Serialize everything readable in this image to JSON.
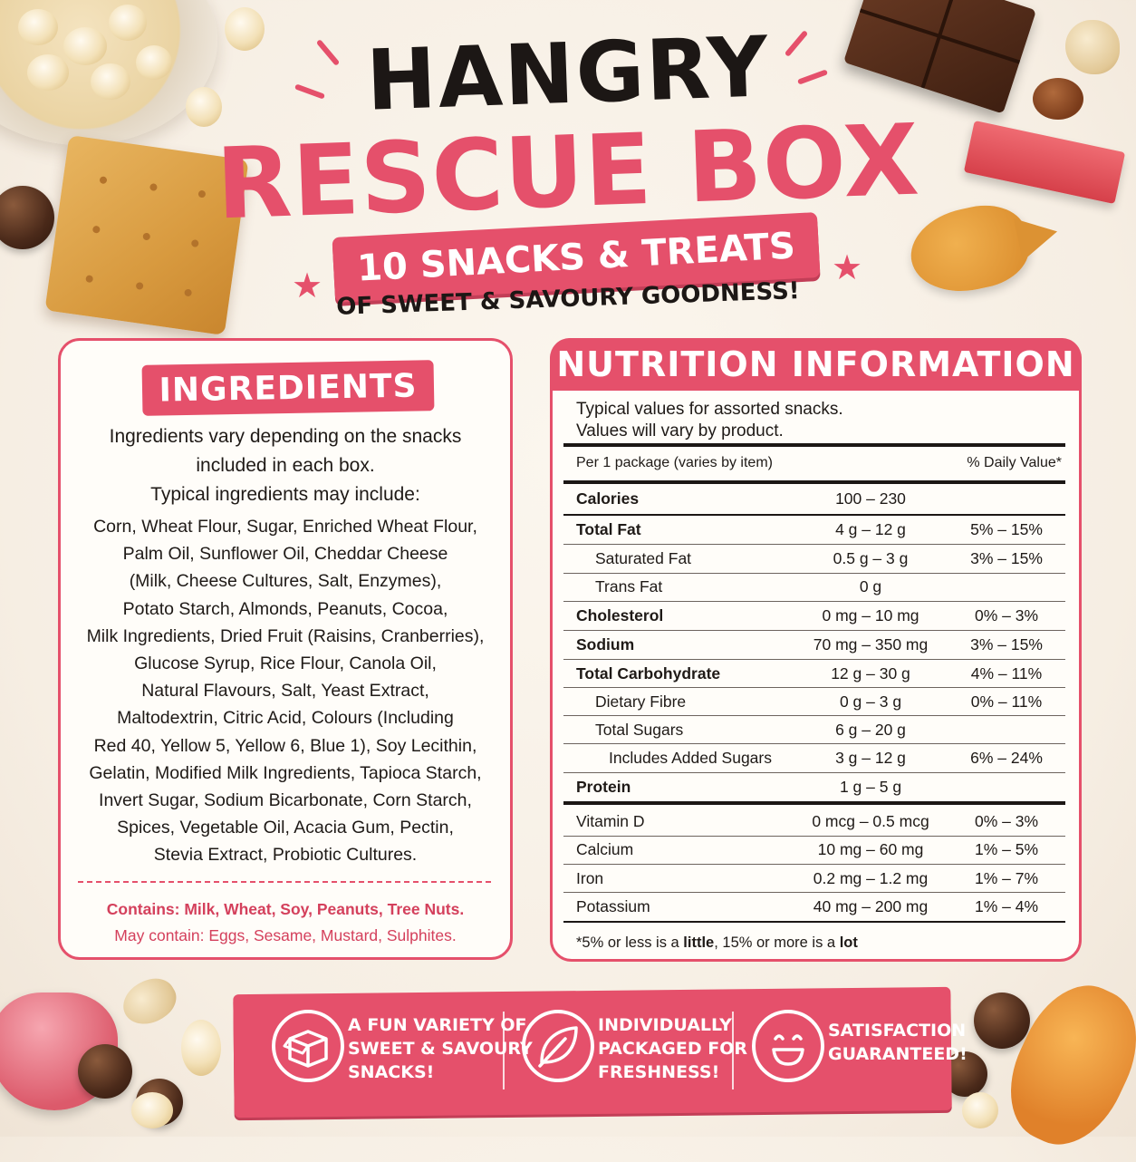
{
  "header": {
    "title_line1": "HANGRY",
    "title_line2": "RESCUE BOX",
    "banner": "10 SNACKS & TREATS",
    "subtitle": "OF SWEET & SAVOURY GOODNESS!"
  },
  "ingredients": {
    "heading": "INGREDIENTS",
    "intro_line1": "Ingredients vary depending on the snacks",
    "intro_line2": "included in each box.",
    "intro_line3": "Typical ingredients may include:",
    "list_lines": [
      "Corn, Wheat Flour, Sugar, Enriched Wheat Flour,",
      "Palm Oil, Sunflower Oil, Cheddar Cheese",
      "(Milk, Cheese Cultures, Salt, Enzymes),",
      "Potato Starch, Almonds, Peanuts, Cocoa,",
      "Milk Ingredients, Dried Fruit (Raisins, Cranberries),",
      "Glucose Syrup, Rice Flour, Canola Oil,",
      "Natural Flavours, Salt, Yeast Extract,",
      "Maltodextrin, Citric Acid, Colours (Including",
      "Red 40, Yellow 5, Yellow 6, Blue 1), Soy Lecithin,",
      "Gelatin, Modified Milk Ingredients, Tapioca Starch,",
      "Invert Sugar, Sodium Bicarbonate, Corn Starch,",
      "Spices, Vegetable Oil, Acacia Gum, Pectin,",
      "Stevia Extract, Probiotic Cultures."
    ],
    "contains": "Contains: Milk, Wheat, Soy, Peanuts, Tree Nuts.",
    "may_contain": "May contain: Eggs, Sesame, Mustard, Sulphites."
  },
  "nutrition": {
    "heading": "NUTRITION INFORMATION",
    "intro_line1": "Typical values for assorted snacks.",
    "intro_line2": "Values will vary by product.",
    "per_label": "Per 1 package (varies by item)",
    "dv_label": "% Daily Value*",
    "rows": [
      {
        "label": "Calories",
        "amount": "100 – 230",
        "dv": ""
      },
      {
        "label": "Total Fat",
        "amount": "4 g – 12 g",
        "dv": "5% – 15%"
      },
      {
        "label": "Saturated Fat",
        "amount": "0.5 g – 3 g",
        "dv": "3% – 15%"
      },
      {
        "label": "Trans Fat",
        "amount": "0 g",
        "dv": ""
      },
      {
        "label": "Cholesterol",
        "amount": "0 mg – 10 mg",
        "dv": "0% – 3%"
      },
      {
        "label": "Sodium",
        "amount": "70 mg – 350 mg",
        "dv": "3% – 15%"
      },
      {
        "label": "Total Carbohydrate",
        "amount": "12 g – 30 g",
        "dv": "4% – 11%"
      },
      {
        "label": "Dietary Fibre",
        "amount": "0 g – 3 g",
        "dv": "0% – 11%"
      },
      {
        "label": "Total Sugars",
        "amount": "6 g – 20 g",
        "dv": ""
      },
      {
        "label": "Includes Added Sugars",
        "amount": "3 g – 12 g",
        "dv": "6% – 24%"
      },
      {
        "label": "Protein",
        "amount": "1 g – 5 g",
        "dv": ""
      },
      {
        "label": "Vitamin D",
        "amount": "0 mcg – 0.5 mcg",
        "dv": "0% – 3%"
      },
      {
        "label": "Calcium",
        "amount": "10 mg – 60 mg",
        "dv": "1% – 5%"
      },
      {
        "label": "Iron",
        "amount": "0.2 mg – 1.2 mg",
        "dv": "1% – 7%"
      },
      {
        "label": "Potassium",
        "amount": "40 mg – 200 mg",
        "dv": "1% – 4%"
      }
    ],
    "footnote_a": "*5% or less is a ",
    "footnote_b": "little",
    "footnote_c": ", 15% or more is a ",
    "footnote_d": "lot"
  },
  "features": [
    {
      "icon": "box-icon",
      "line1": "A FUN VARIETY OF",
      "line2": "SWEET & SAVOURY",
      "line3": "SNACKS!"
    },
    {
      "icon": "leaf-icon",
      "line1": "INDIVIDUALLY",
      "line2": "PACKAGED FOR",
      "line3": "FRESHNESS!"
    },
    {
      "icon": "smiley-icon",
      "line1": "SATISFACTION",
      "line2": "GUARANTEED!",
      "line3": ""
    }
  ],
  "colors": {
    "accent": "#e5506b",
    "text": "#1c1715",
    "panel": "#fffdf9"
  }
}
